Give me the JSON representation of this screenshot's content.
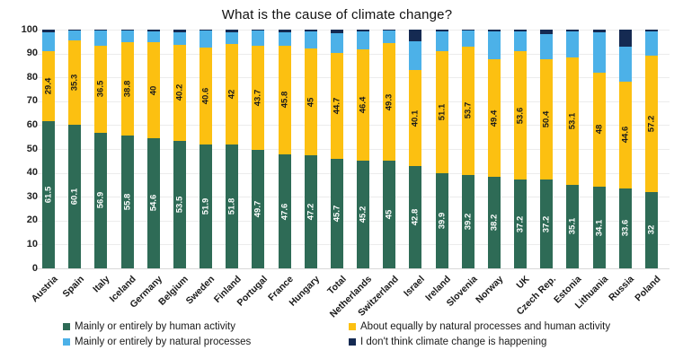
{
  "title": "What is the cause of climate change?",
  "chart_data": {
    "type": "bar",
    "stacked": true,
    "grid": true,
    "legend_position": "bottom",
    "ylim": [
      0,
      100
    ],
    "yticks": [
      0,
      10,
      20,
      30,
      40,
      50,
      60,
      70,
      80,
      90,
      100
    ],
    "categories": [
      "Austria",
      "Spain",
      "Italy",
      "Iceland",
      "Germany",
      "Belgium",
      "Sweden",
      "Finland",
      "Portugal",
      "France",
      "Hungary",
      "Total",
      "Netherlands",
      "Switzerland",
      "Israel",
      "Ireland",
      "Slovenia",
      "Norway",
      "UK",
      "Czech Rep.",
      "Estonia",
      "Lithuania",
      "Russia",
      "Poland"
    ],
    "series": [
      {
        "name": "Mainly or entirely by human activity",
        "color": "#2e6b56",
        "label_color": "#ffffff",
        "labels_shown": true,
        "values": [
          61.5,
          60.1,
          56.9,
          55.8,
          54.6,
          53.5,
          51.9,
          51.8,
          49.7,
          47.6,
          47.2,
          45.7,
          45.2,
          45,
          42.8,
          39.9,
          39.2,
          38.2,
          37.2,
          37.2,
          35.1,
          34.1,
          33.6,
          32
        ]
      },
      {
        "name": "About equally by natural processes and human activity",
        "color": "#fcc011",
        "label_color": "#1a1a1a",
        "labels_shown": true,
        "values": [
          29.4,
          35.3,
          36.5,
          38.8,
          40,
          40.2,
          40.6,
          42,
          43.7,
          45.8,
          45,
          44.7,
          46.4,
          49.3,
          40.1,
          51.1,
          53.7,
          49.4,
          53.6,
          50.4,
          53.1,
          48,
          44.6,
          57.2
        ]
      },
      {
        "name": "Mainly or entirely by natural processes",
        "color": "#4cb1e8",
        "label_color": "#1a1a1a",
        "labels_shown": false,
        "values": [
          7.8,
          4.1,
          6.1,
          5.1,
          4.7,
          5.3,
          7.1,
          5.2,
          6.1,
          5.6,
          7,
          8.1,
          7.8,
          5.3,
          12.1,
          8.4,
          6.7,
          11.8,
          8.5,
          10.6,
          11,
          16.7,
          14.7,
          10
        ]
      },
      {
        "name": "I don't think climate change is happening",
        "color": "#152a52",
        "label_color": "#ffffff",
        "labels_shown": false,
        "values": [
          1.3,
          0.5,
          0.5,
          0.3,
          0.7,
          1,
          0.4,
          1,
          0.5,
          1,
          0.8,
          1.5,
          0.6,
          0.4,
          5,
          0.6,
          0.4,
          0.6,
          0.7,
          1.8,
          0.8,
          1.2,
          7.1,
          0.8
        ]
      }
    ]
  }
}
